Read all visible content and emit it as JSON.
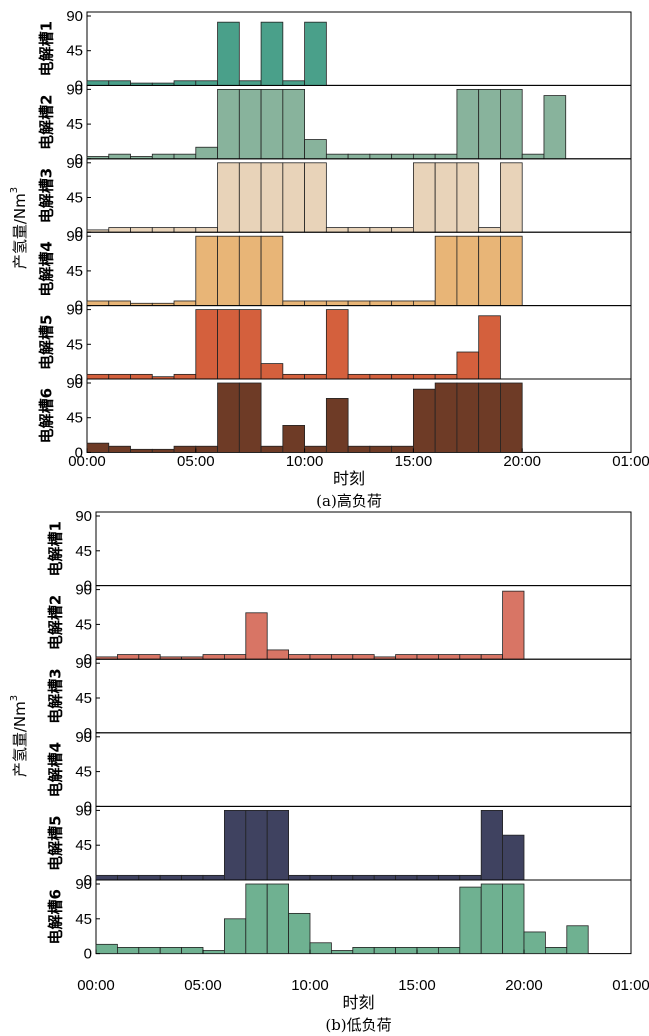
{
  "chart_data": [
    {
      "type": "bar",
      "caption": "(a)高负荷",
      "xlabel": "时刻",
      "ylabel": "产氢量/Nm",
      "ylabel_sup": "3",
      "x_ticks": [
        "00:00",
        "05:00",
        "10:00",
        "15:00",
        "20:00",
        "01:00"
      ],
      "y_ticks": [
        "0",
        "45",
        "90"
      ],
      "ylim": [
        0,
        90
      ],
      "x_range_hours": [
        0,
        25
      ],
      "bin_width_hours": 1,
      "panels": [
        {
          "name": "电解槽1",
          "color": "#4aa08a",
          "values": [
            6,
            6,
            3,
            3,
            6,
            6,
            82,
            6,
            82,
            6,
            82,
            0,
            0,
            0,
            0,
            0,
            0,
            0,
            0,
            0,
            0,
            0,
            0,
            0
          ]
        },
        {
          "name": "电解槽2",
          "color": "#88b39c",
          "values": [
            3,
            6,
            3,
            6,
            6,
            15,
            90,
            90,
            90,
            90,
            25,
            6,
            6,
            6,
            6,
            6,
            6,
            90,
            90,
            90,
            6,
            82,
            0,
            0
          ]
        },
        {
          "name": "电解槽3",
          "color": "#e8d3b9",
          "values": [
            3,
            6,
            6,
            6,
            6,
            6,
            90,
            90,
            90,
            90,
            90,
            6,
            6,
            6,
            6,
            90,
            90,
            90,
            6,
            90,
            0,
            0,
            0,
            0
          ]
        },
        {
          "name": "电解槽4",
          "color": "#e8b577",
          "values": [
            6,
            6,
            3,
            3,
            6,
            90,
            90,
            90,
            90,
            6,
            6,
            6,
            6,
            6,
            6,
            6,
            90,
            90,
            90,
            90,
            0,
            0,
            0,
            0
          ]
        },
        {
          "name": "电解槽5",
          "color": "#d4603d",
          "values": [
            6,
            6,
            6,
            3,
            6,
            90,
            90,
            90,
            20,
            6,
            6,
            90,
            6,
            6,
            6,
            6,
            6,
            35,
            82,
            0,
            0,
            0,
            0,
            0
          ]
        },
        {
          "name": "电解槽6",
          "color": "#6e3b26",
          "values": [
            12,
            8,
            4,
            4,
            8,
            8,
            90,
            90,
            8,
            35,
            8,
            70,
            8,
            8,
            8,
            82,
            90,
            90,
            90,
            90,
            0,
            0,
            0,
            0
          ]
        }
      ]
    },
    {
      "type": "bar",
      "caption": "(b)低负荷",
      "xlabel": "时刻",
      "ylabel": "产氢量/Nm",
      "ylabel_sup": "3",
      "x_ticks": [
        "00:00",
        "05:00",
        "10:00",
        "15:00",
        "20:00",
        "01:00"
      ],
      "y_ticks": [
        "0",
        "45",
        "90"
      ],
      "ylim": [
        0,
        90
      ],
      "x_range_hours": [
        0,
        25
      ],
      "bin_width_hours": 1,
      "panels": [
        {
          "name": "电解槽1",
          "color": "#4aa08a",
          "values": [
            0,
            0,
            0,
            0,
            0,
            0,
            0,
            0,
            0,
            0,
            0,
            0,
            0,
            0,
            0,
            0,
            0,
            0,
            0,
            0,
            0,
            0,
            0,
            0
          ]
        },
        {
          "name": "电解槽2",
          "color": "#d87565",
          "values": [
            3,
            6,
            6,
            3,
            3,
            6,
            6,
            60,
            12,
            6,
            6,
            6,
            6,
            3,
            6,
            6,
            6,
            6,
            6,
            88,
            0,
            0,
            0,
            0
          ]
        },
        {
          "name": "电解槽3",
          "color": "#e8d3b9",
          "values": [
            0,
            0,
            0,
            0,
            0,
            0,
            0,
            0,
            0,
            0,
            0,
            0,
            0,
            0,
            0,
            0,
            0,
            0,
            0,
            0,
            0,
            0,
            0,
            0
          ]
        },
        {
          "name": "电解槽4",
          "color": "#e8b577",
          "values": [
            0,
            0,
            0,
            0,
            0,
            0,
            0,
            0,
            0,
            0,
            0,
            0,
            0,
            0,
            0,
            0,
            0,
            0,
            0,
            0,
            0,
            0,
            0,
            0
          ]
        },
        {
          "name": "电解槽5",
          "color": "#3f4260",
          "values": [
            6,
            6,
            6,
            6,
            6,
            6,
            90,
            90,
            90,
            6,
            6,
            6,
            6,
            6,
            6,
            6,
            6,
            6,
            90,
            58,
            0,
            0,
            0,
            0
          ]
        },
        {
          "name": "电解槽6",
          "color": "#6fb191",
          "values": [
            12,
            8,
            8,
            8,
            8,
            4,
            45,
            90,
            90,
            52,
            14,
            4,
            8,
            8,
            8,
            8,
            8,
            86,
            90,
            90,
            28,
            8,
            36,
            0
          ]
        }
      ]
    }
  ]
}
